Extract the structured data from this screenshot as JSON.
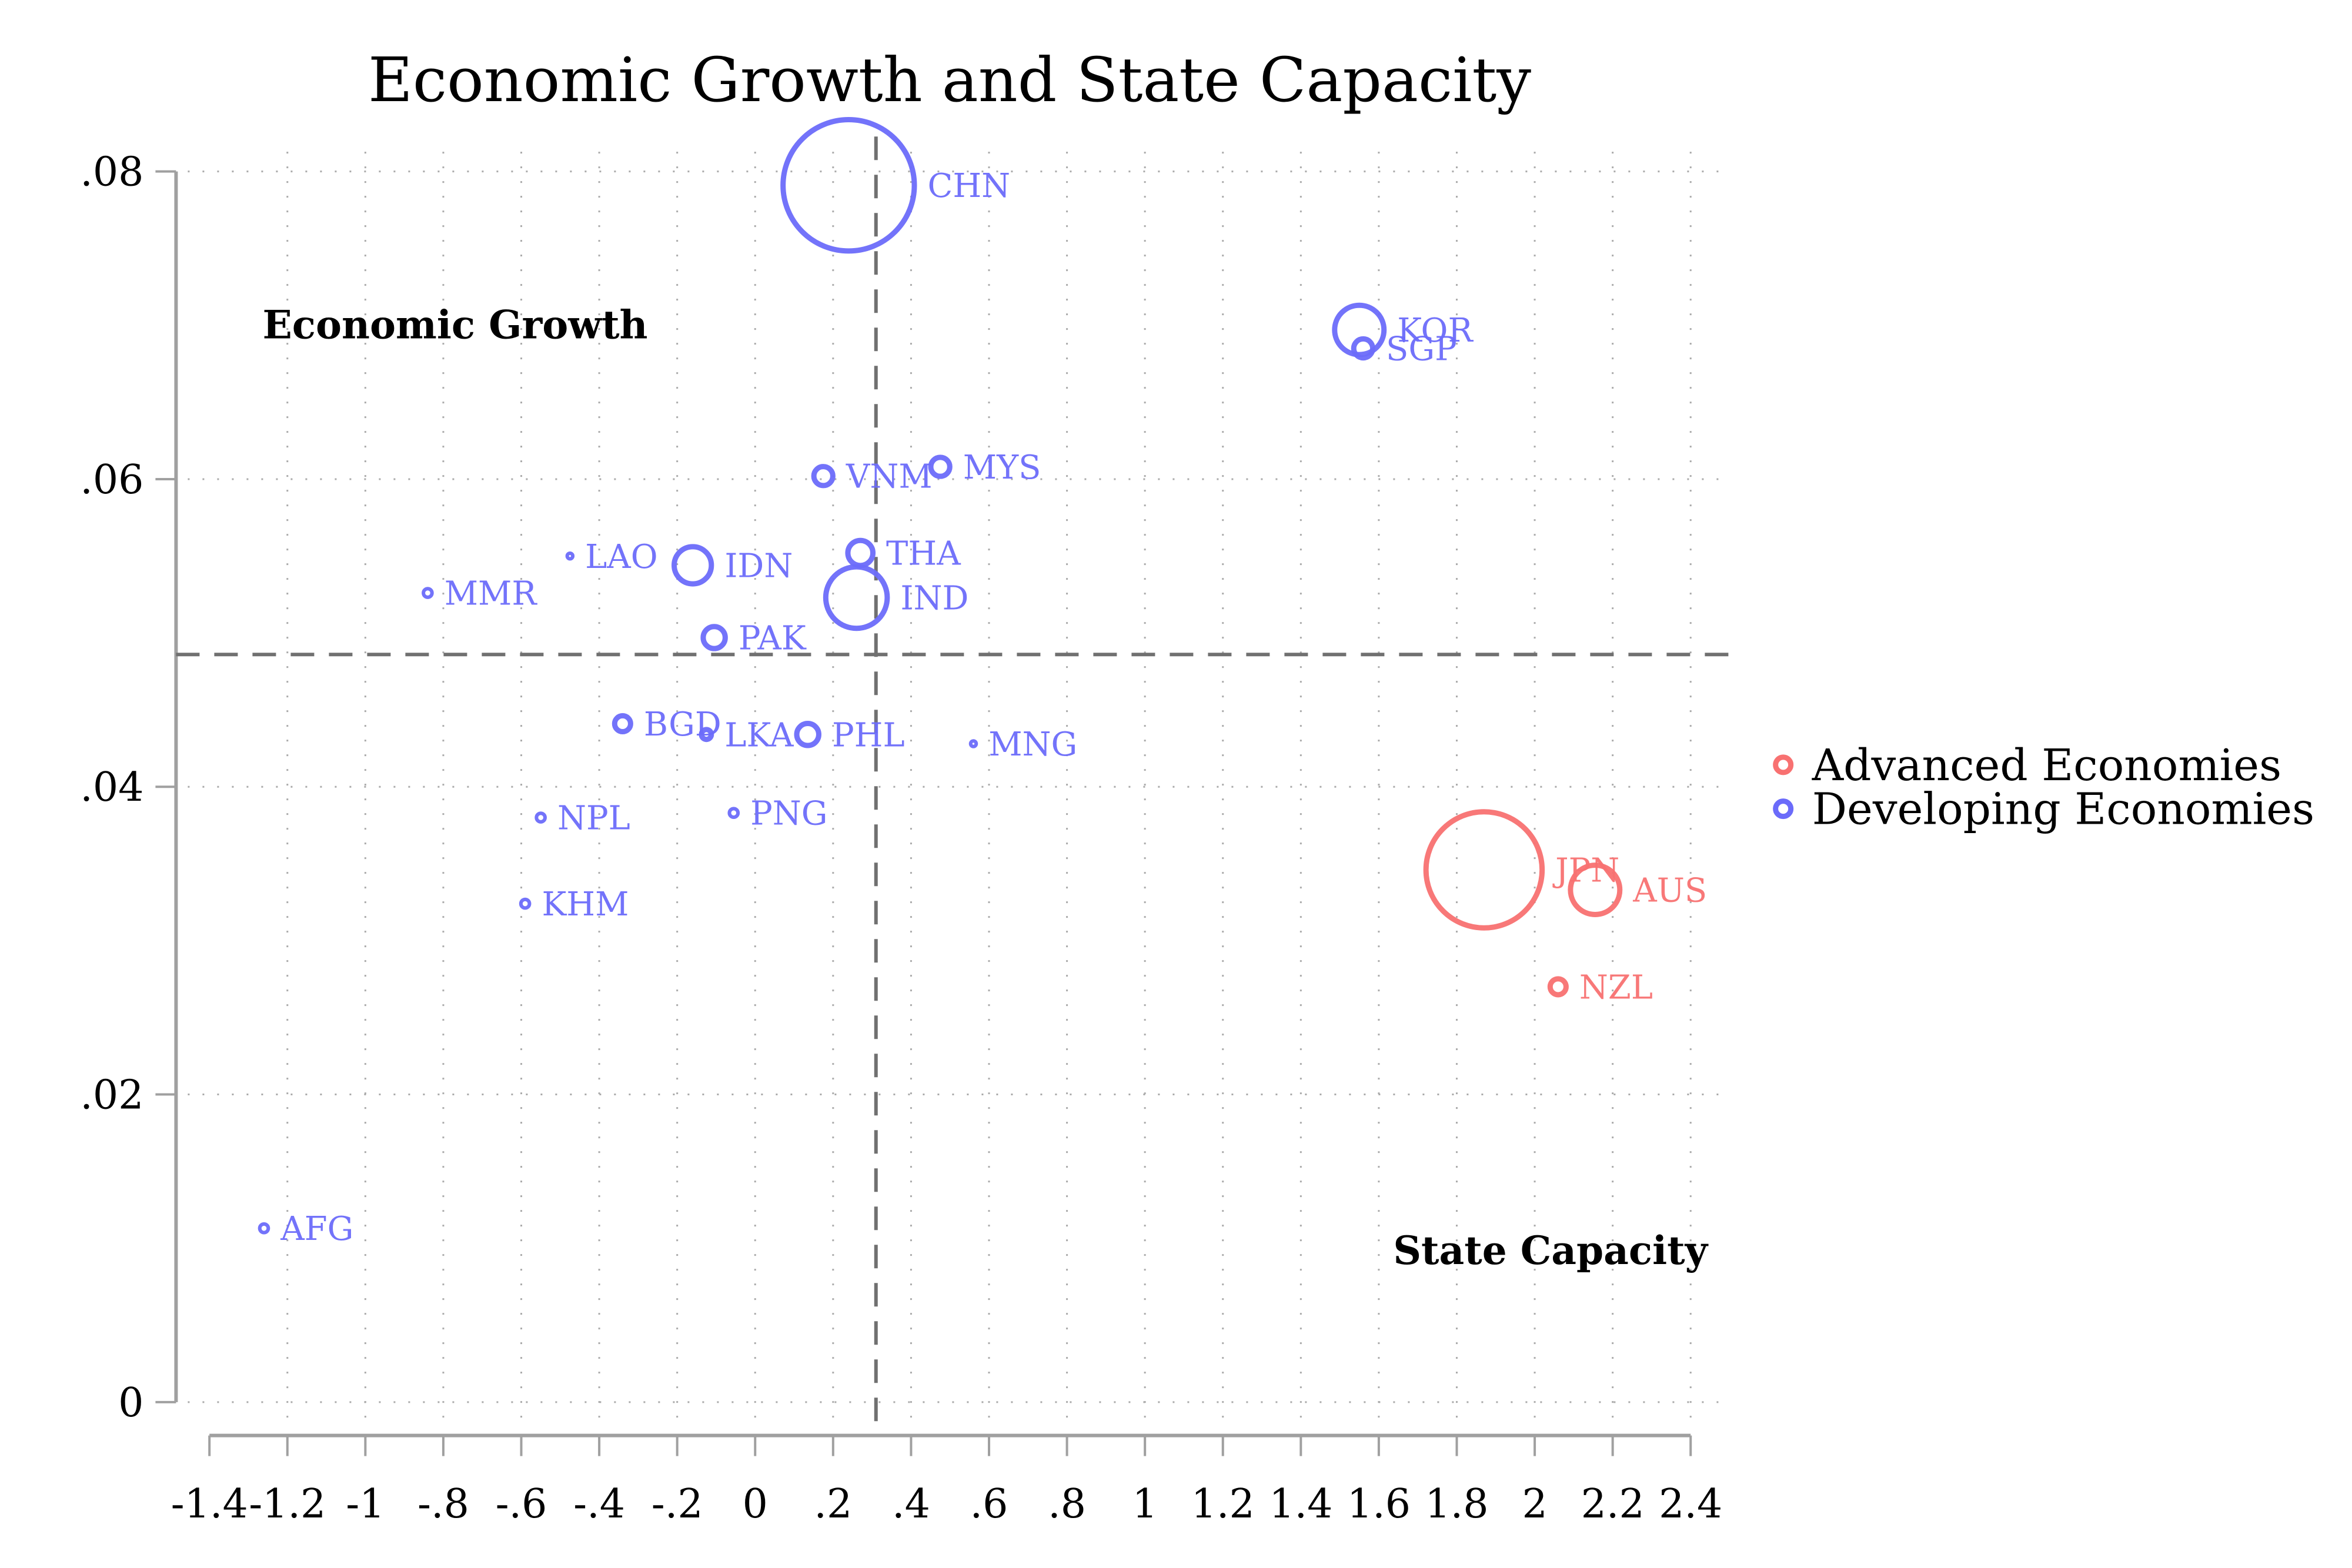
{
  "chart_data": {
    "type": "scatter",
    "title": "Economic Growth and State Capacity",
    "xlabel": "",
    "ylabel": "",
    "xlim": [
      -1.4,
      2.4
    ],
    "ylim": [
      0,
      0.08
    ],
    "x_ticks": [
      -1.4,
      -1.2,
      -1,
      -0.8,
      -0.6,
      -0.4,
      -0.2,
      0,
      0.2,
      0.4,
      0.6,
      0.8,
      1,
      1.2,
      1.4,
      1.6,
      1.8,
      2,
      2.2,
      2.4
    ],
    "x_tick_labels": [
      "-1.4",
      "-1.2",
      "-1",
      "-.8",
      "-.6",
      "-.4",
      "-.2",
      "0",
      ".2",
      ".4",
      ".6",
      ".8",
      "1",
      "1.2",
      "1.4",
      "1.6",
      "1.8",
      "2",
      "2.2",
      "2.4"
    ],
    "y_ticks": [
      0,
      0.02,
      0.04,
      0.06,
      0.08
    ],
    "y_tick_labels": [
      "0",
      ".02",
      ".04",
      ".06",
      ".08"
    ],
    "grid": true,
    "reference_lines": {
      "x": 0.31,
      "y": 0.0486
    },
    "annotations": [
      {
        "text": "Economic Growth",
        "x": -1.25,
        "y": 0.0697
      },
      {
        "text": "State Capacity",
        "x": 1.65,
        "y": 0.0098
      }
    ],
    "legend": {
      "position": "right",
      "entries": [
        {
          "label": "Advanced Economies",
          "color": "#f87171"
        },
        {
          "label": "Developing Economies",
          "color": "#6b6bfa"
        }
      ]
    },
    "size_note": "marker size proportional to economy weight (relative)",
    "series": [
      {
        "name": "Advanced Economies",
        "color": "#f87171",
        "points": [
          {
            "label": "JPN",
            "x": 1.87,
            "y": 0.0346,
            "size": 40
          },
          {
            "label": "AUS",
            "x": 2.155,
            "y": 0.0333,
            "size": 18
          },
          {
            "label": "NZL",
            "x": 2.06,
            "y": 0.027,
            "size": 7
          }
        ]
      },
      {
        "name": "Developing Economies",
        "color": "#6b6bfa",
        "points": [
          {
            "label": "CHN",
            "x": 0.24,
            "y": 0.0791,
            "size": 45
          },
          {
            "label": "KOR",
            "x": 1.55,
            "y": 0.0697,
            "size": 18
          },
          {
            "label": "SGP",
            "x": 1.56,
            "y": 0.0685,
            "size": 8
          },
          {
            "label": "VNM",
            "x": 0.175,
            "y": 0.0602,
            "size": 8
          },
          {
            "label": "MYS",
            "x": 0.475,
            "y": 0.0608,
            "size": 8
          },
          {
            "label": "LAO",
            "x": -0.475,
            "y": 0.055,
            "size": 3
          },
          {
            "label": "IDN",
            "x": -0.16,
            "y": 0.0544,
            "size": 14
          },
          {
            "label": "THA",
            "x": 0.27,
            "y": 0.0552,
            "size": 10
          },
          {
            "label": "IND",
            "x": 0.26,
            "y": 0.0523,
            "size": 22
          },
          {
            "label": "MMR",
            "x": -0.84,
            "y": 0.0526,
            "size": 4
          },
          {
            "label": "PAK",
            "x": -0.105,
            "y": 0.0497,
            "size": 9
          },
          {
            "label": "BGD",
            "x": -0.34,
            "y": 0.0441,
            "size": 7
          },
          {
            "label": "LKA",
            "x": -0.125,
            "y": 0.0434,
            "size": 5
          },
          {
            "label": "PHL",
            "x": 0.135,
            "y": 0.0434,
            "size": 9
          },
          {
            "label": "MNG",
            "x": 0.56,
            "y": 0.0428,
            "size": 3
          },
          {
            "label": "NPL",
            "x": -0.55,
            "y": 0.038,
            "size": 4
          },
          {
            "label": "PNG",
            "x": -0.055,
            "y": 0.0383,
            "size": 4
          },
          {
            "label": "KHM",
            "x": -0.59,
            "y": 0.0324,
            "size": 4
          },
          {
            "label": "AFG",
            "x": -1.26,
            "y": 0.0113,
            "size": 4
          }
        ]
      }
    ]
  }
}
